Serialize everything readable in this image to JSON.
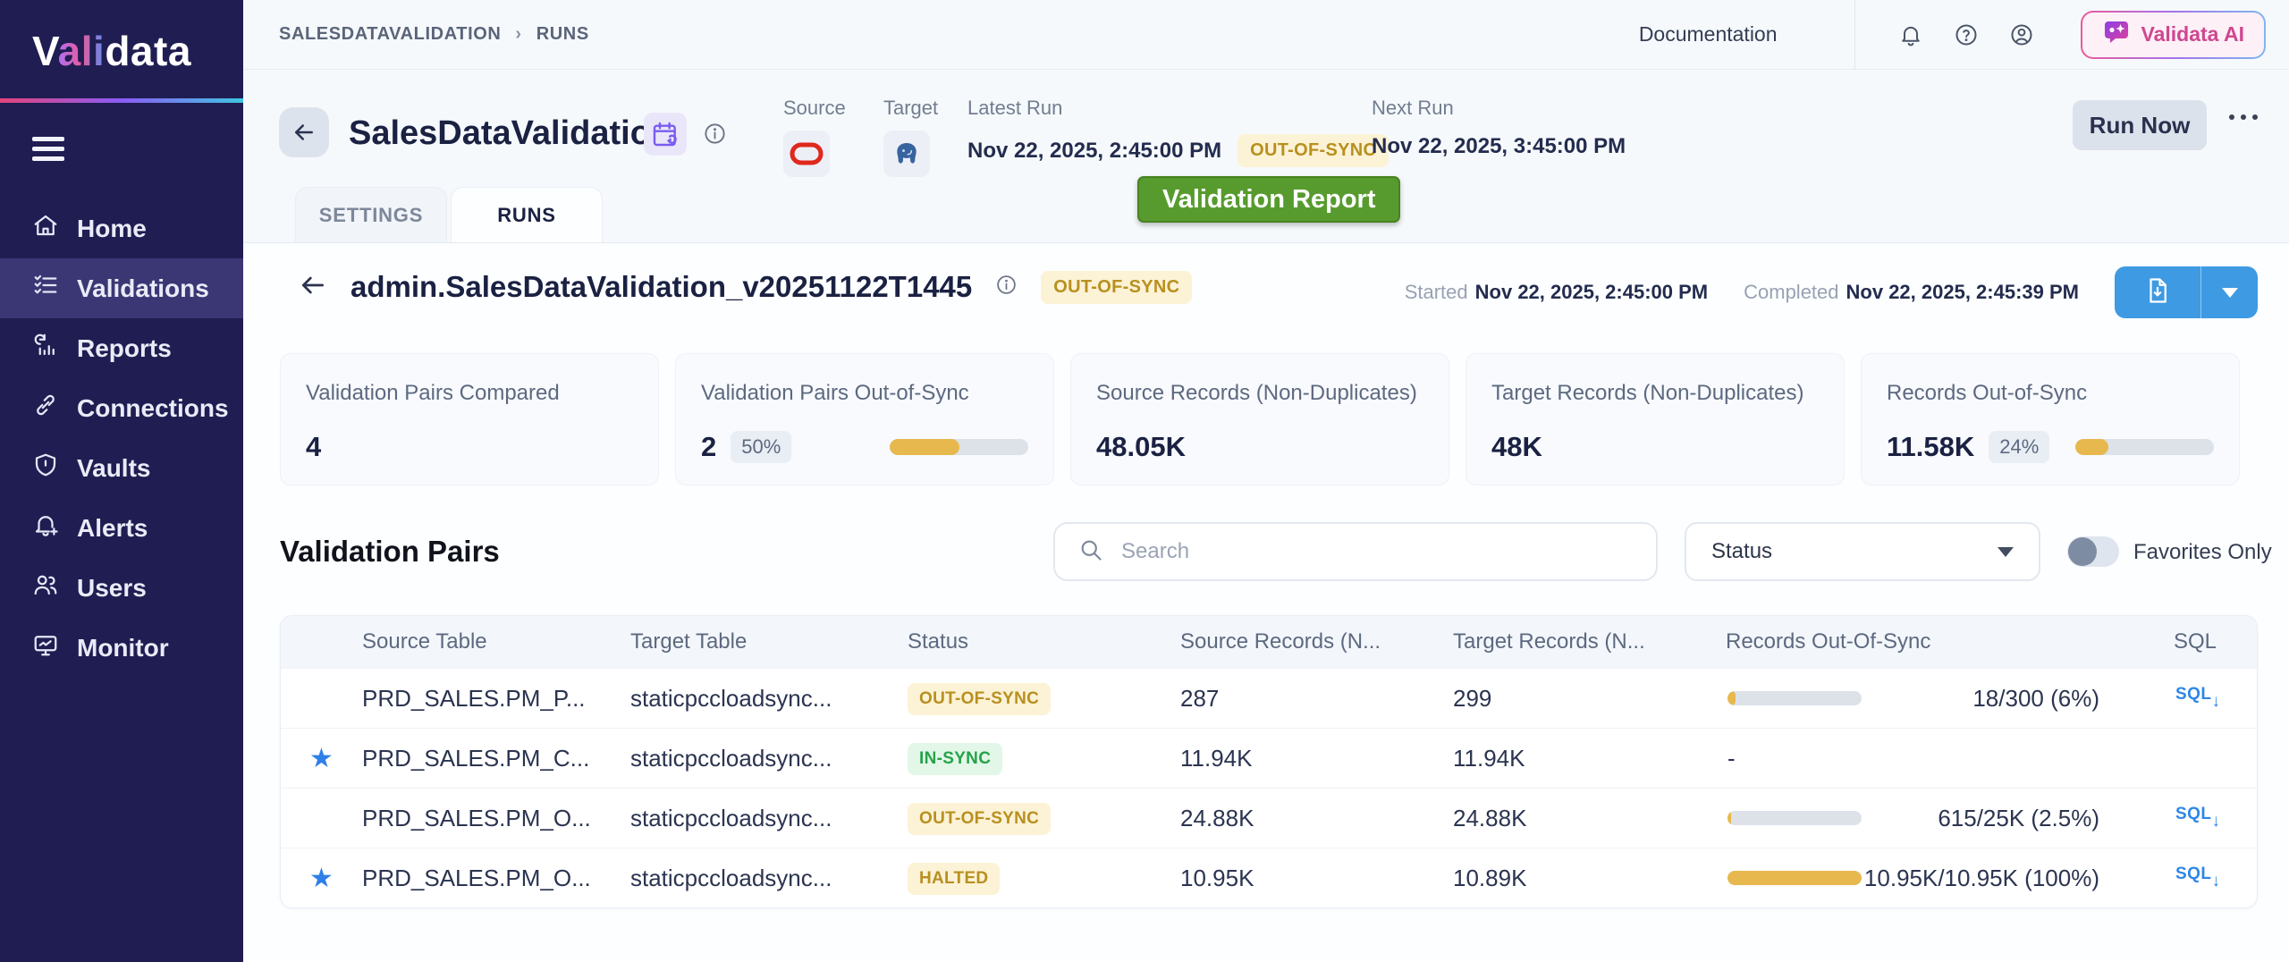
{
  "colors": {
    "accent_blue": "#3e9ae2",
    "amber": "#e7b84d",
    "green_badge": "#27a24a",
    "warn_badge": "#b8901f",
    "sidebar_bg": "#201d52",
    "report_green": "#579b2f"
  },
  "sidebar": {
    "logo_prefix": "V",
    "logo_accent": "ali",
    "logo_suffix": "data",
    "items": [
      {
        "label": "Home",
        "icon": "home",
        "active": false
      },
      {
        "label": "Validations",
        "icon": "checklist",
        "active": true
      },
      {
        "label": "Reports",
        "icon": "report-chart",
        "active": false
      },
      {
        "label": "Connections",
        "icon": "link",
        "active": false
      },
      {
        "label": "Vaults",
        "icon": "shield",
        "active": false
      },
      {
        "label": "Alerts",
        "icon": "bell-plus",
        "active": false
      },
      {
        "label": "Users",
        "icon": "users",
        "active": false
      },
      {
        "label": "Monitor",
        "icon": "monitor",
        "active": false
      }
    ]
  },
  "topbar": {
    "breadcrumb": [
      "SALESDATAVALIDATION",
      "RUNS"
    ],
    "separator": "›",
    "documentation_label": "Documentation",
    "ai_button_label": "Validata AI"
  },
  "header": {
    "title": "SalesDataValidation",
    "source_label": "Source",
    "target_label": "Target",
    "latest_run_label": "Latest Run",
    "latest_run_value": "Nov 22, 2025, 2:45:00 PM",
    "latest_run_status": "OUT-OF-SYNC",
    "next_run_label": "Next Run",
    "next_run_value": "Nov 22, 2025, 3:45:00 PM",
    "run_now_label": "Run Now",
    "validation_report_label": "Validation Report",
    "tabs": [
      {
        "label": "SETTINGS",
        "active": false
      },
      {
        "label": "RUNS",
        "active": true
      }
    ]
  },
  "run": {
    "title": "admin.SalesDataValidation_v20251122T1445",
    "status": "OUT-OF-SYNC",
    "started_label": "Started",
    "started_value": "Nov 22, 2025, 2:45:00 PM",
    "completed_label": "Completed",
    "completed_value": "Nov 22, 2025, 2:45:39 PM"
  },
  "stats": [
    {
      "title": "Validation Pairs Compared",
      "value": "4"
    },
    {
      "title": "Validation Pairs Out-of-Sync",
      "value": "2",
      "badge": "50%",
      "progress": 50
    },
    {
      "title": "Source Records (Non-Duplicates)",
      "value": "48.05K"
    },
    {
      "title": "Target Records (Non-Duplicates)",
      "value": "48K"
    },
    {
      "title": "Records Out-of-Sync",
      "value": "11.58K",
      "badge": "24%",
      "progress": 24
    }
  ],
  "pairs": {
    "title": "Validation Pairs",
    "search_placeholder": "Search",
    "status_filter_label": "Status",
    "favorites_label": "Favorites Only",
    "sql_icon_label": "SQL",
    "sql_icon_arrow": "↓",
    "columns": [
      "Source Table",
      "Target Table",
      "Status",
      "Source Records (N...",
      "Target Records (N...",
      "Records Out-Of-Sync",
      "SQL"
    ],
    "rows": [
      {
        "favorite": false,
        "source_table": "PRD_SALES.PM_P...",
        "target_table": "staticpccloadsync...",
        "status": "OUT-OF-SYNC",
        "source_records": "287",
        "target_records": "299",
        "oos_text": "18/300 (6%)",
        "oos_progress": 6,
        "has_sql": true
      },
      {
        "favorite": true,
        "source_table": "PRD_SALES.PM_C...",
        "target_table": "staticpccloadsync...",
        "status": "IN-SYNC",
        "source_records": "11.94K",
        "target_records": "11.94K",
        "oos_text": "-",
        "oos_progress": null,
        "has_sql": false
      },
      {
        "favorite": false,
        "source_table": "PRD_SALES.PM_O...",
        "target_table": "staticpccloadsync...",
        "status": "OUT-OF-SYNC",
        "source_records": "24.88K",
        "target_records": "24.88K",
        "oos_text": "615/25K (2.5%)",
        "oos_progress": 2.5,
        "has_sql": true
      },
      {
        "favorite": true,
        "source_table": "PRD_SALES.PM_O...",
        "target_table": "staticpccloadsync...",
        "status": "HALTED",
        "source_records": "10.95K",
        "target_records": "10.89K",
        "oos_text": "10.95K/10.95K (100%)",
        "oos_progress": 100,
        "has_sql": true
      }
    ]
  }
}
